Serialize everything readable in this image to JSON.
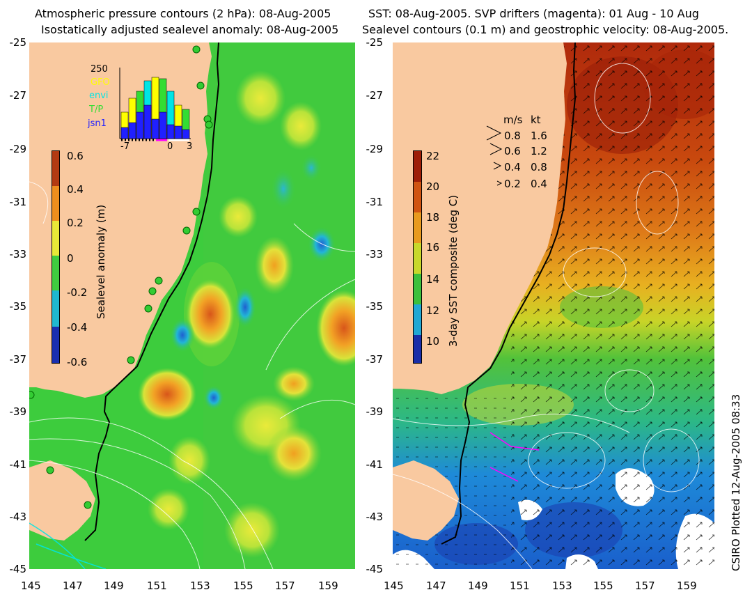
{
  "left_panel": {
    "title_line1": "Atmospheric pressure contours (2 hPa): 08-Aug-2005",
    "title_line2": "Isostatically adjusted sealevel anomaly: 08-Aug-2005",
    "y_ticks": [
      "-25",
      "-27",
      "-29",
      "-31",
      "-33",
      "-35",
      "-37",
      "-39",
      "-41",
      "-43",
      "-45"
    ],
    "x_ticks": [
      "145",
      "147",
      "149",
      "151",
      "153",
      "155",
      "157",
      "159"
    ],
    "colorbar": {
      "label": "Sealevel anomaly (m)",
      "ticks": [
        "0.6",
        "0.4",
        "0.2",
        "0",
        "-0.2",
        "-0.4",
        "-0.6"
      ]
    },
    "inset": {
      "y_max_label": "250",
      "legend": [
        {
          "label": "GFO",
          "color": "#ffff00"
        },
        {
          "label": "envi",
          "color": "#00e5e5"
        },
        {
          "label": "T/P",
          "color": "#33dd33"
        },
        {
          "label": "jsn1",
          "color": "#2020ff"
        }
      ],
      "x_ticks": [
        "-7",
        "0",
        "3"
      ]
    }
  },
  "right_panel": {
    "title_line1": "SST: 08-Aug-2005. SVP drifters (magenta): 01 Aug - 10 Aug",
    "title_line2": "Sealevel contours (0.1 m) and geostrophic velocity: 08-Aug-2005.",
    "y_ticks": [
      "-25",
      "-27",
      "-29",
      "-31",
      "-33",
      "-35",
      "-37",
      "-39",
      "-41",
      "-43",
      "-45"
    ],
    "x_ticks": [
      "145",
      "147",
      "149",
      "151",
      "153",
      "155",
      "157",
      "159"
    ],
    "colorbar": {
      "label": "3-day SST composite (deg C)",
      "ticks": [
        "22",
        "20",
        "18",
        "16",
        "14",
        "12",
        "10"
      ]
    },
    "velocity_legend": {
      "header_ms": "m/s",
      "header_kt": "kt",
      "rows": [
        {
          "ms": "0.8",
          "kt": "1.6"
        },
        {
          "ms": "0.6",
          "kt": "1.2"
        },
        {
          "ms": "0.4",
          "kt": "0.8"
        },
        {
          "ms": "0.2",
          "kt": "0.4"
        }
      ]
    }
  },
  "credit": "CSIRO Plotted 12-Aug-2005 08:33",
  "colors": {
    "land": "#f9c9a0",
    "sla_base": "#3dcc3d",
    "sst_warm": "#b8320c",
    "sst_cool": "#1f7fd6"
  }
}
